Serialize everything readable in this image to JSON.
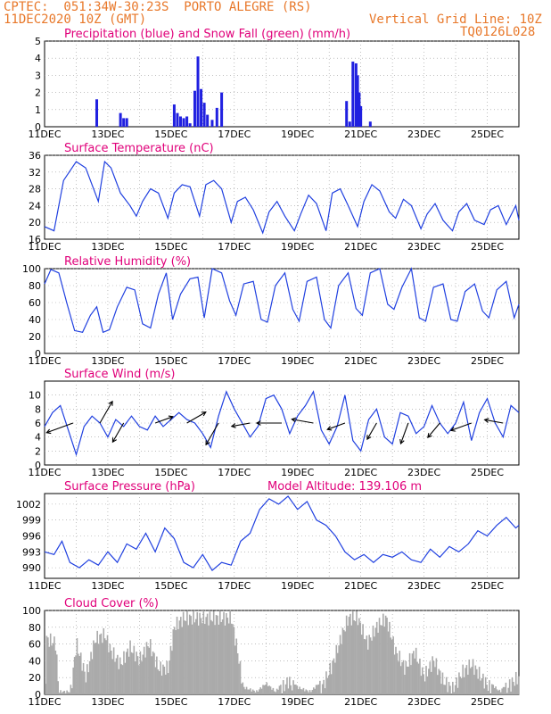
{
  "header": {
    "line1": "CPTEC:  051:34W-30:23S  PORTO ALEGRE (RS)",
    "line2": "11DEC2020 10Z (GMT)",
    "right1": "Vertical Grid Line: 10Z",
    "right2": "TQ0126L028"
  },
  "colors": {
    "header": "#e8782a",
    "title": "#e0007a",
    "line": "#2040e0",
    "precip": "#2020e0",
    "snow": "#00a000",
    "cloud": "#aaaaaa",
    "grid": "#999999"
  },
  "chart_data": [
    {
      "id": "precip",
      "type": "bar",
      "title": "Precipitation (blue) and Snow Fall (green) (mm/h)",
      "ylim": [
        0,
        5
      ],
      "yticks": [
        0,
        1,
        2,
        3,
        4,
        5
      ],
      "xlabels": [
        "11DEC",
        "13DEC",
        "15DEC",
        "17DEC",
        "19DEC",
        "21DEC",
        "23DEC",
        "25DEC"
      ],
      "xlim_days": [
        0,
        15
      ],
      "grid": true,
      "series": [
        {
          "name": "Precipitation",
          "color": "#2020e0",
          "x_days": [
            1.65,
            2.4,
            2.5,
            2.6,
            4.1,
            4.2,
            4.3,
            4.4,
            4.5,
            4.6,
            4.75,
            4.85,
            4.95,
            5.05,
            5.15,
            5.3,
            5.45,
            5.6,
            9.55,
            9.65,
            9.75,
            9.85,
            9.9,
            9.95,
            10.0,
            10.3
          ],
          "values": [
            1.6,
            0.8,
            0.5,
            0.5,
            1.3,
            0.8,
            0.6,
            0.5,
            0.6,
            0.2,
            2.1,
            4.1,
            2.2,
            1.4,
            0.7,
            0.4,
            1.1,
            2.0,
            1.5,
            0.3,
            3.8,
            3.7,
            3.0,
            2.0,
            1.2,
            0.3
          ]
        },
        {
          "name": "Snow Fall",
          "color": "#00a000",
          "x_days": [],
          "values": []
        }
      ]
    },
    {
      "id": "temp",
      "type": "line",
      "title": "Surface Temperature (nC)",
      "ylim": [
        16,
        36
      ],
      "yticks": [
        16,
        20,
        24,
        28,
        32,
        36
      ],
      "xlabels": [
        "11DEC",
        "13DEC",
        "15DEC",
        "17DEC",
        "19DEC",
        "21DEC",
        "23DEC",
        "25DEC"
      ],
      "xlim_days": [
        0,
        15
      ],
      "grid": true,
      "series": [
        {
          "name": "Temperature",
          "x_days": [
            0,
            0.3,
            0.6,
            1.0,
            1.3,
            1.5,
            1.7,
            1.9,
            2.1,
            2.4,
            2.7,
            2.9,
            3.1,
            3.35,
            3.6,
            3.9,
            4.1,
            4.35,
            4.6,
            4.9,
            5.1,
            5.35,
            5.6,
            5.9,
            6.1,
            6.35,
            6.6,
            6.9,
            7.1,
            7.35,
            7.6,
            7.9,
            8.1,
            8.35,
            8.6,
            8.9,
            9.1,
            9.35,
            9.6,
            9.9,
            10.1,
            10.35,
            10.6,
            10.9,
            11.1,
            11.35,
            11.6,
            11.9,
            12.1,
            12.35,
            12.6,
            12.9,
            13.1,
            13.35,
            13.6,
            13.9,
            14.1,
            14.35,
            14.6,
            14.9,
            15.0
          ],
          "values": [
            19,
            18,
            30,
            34.5,
            33,
            29,
            25,
            34.5,
            33,
            27,
            24,
            21.5,
            25,
            28,
            27,
            21,
            27,
            29,
            28.5,
            21.5,
            29,
            30,
            28,
            20,
            25,
            26,
            23,
            17.5,
            22.5,
            25,
            21.5,
            18,
            22,
            26.5,
            24.5,
            18,
            27,
            28,
            24,
            19,
            25,
            29,
            27.5,
            22.5,
            21,
            25.5,
            24,
            18.5,
            22,
            24.5,
            20.5,
            18,
            22.5,
            24.5,
            20.5,
            19.5,
            23,
            24,
            19.5,
            24,
            20.5
          ]
        }
      ]
    },
    {
      "id": "rh",
      "type": "line",
      "title": "Relative Humidity (%)",
      "ylim": [
        0,
        100
      ],
      "yticks": [
        0,
        20,
        40,
        60,
        80,
        100
      ],
      "xlabels": [
        "11DEC",
        "13DEC",
        "15DEC",
        "17DEC",
        "19DEC",
        "21DEC",
        "23DEC",
        "25DEC"
      ],
      "xlim_days": [
        0,
        15
      ],
      "grid": true,
      "series": [
        {
          "name": "Humidity",
          "x_days": [
            0,
            0.2,
            0.45,
            0.7,
            0.95,
            1.2,
            1.45,
            1.65,
            1.85,
            2.05,
            2.3,
            2.6,
            2.85,
            3.1,
            3.35,
            3.6,
            3.85,
            4.05,
            4.3,
            4.6,
            4.85,
            5.05,
            5.3,
            5.6,
            5.85,
            6.05,
            6.3,
            6.6,
            6.85,
            7.05,
            7.3,
            7.6,
            7.85,
            8.05,
            8.3,
            8.6,
            8.85,
            9.05,
            9.3,
            9.6,
            9.85,
            10.05,
            10.3,
            10.6,
            10.85,
            11.05,
            11.3,
            11.6,
            11.85,
            12.05,
            12.3,
            12.6,
            12.85,
            13.05,
            13.3,
            13.6,
            13.85,
            14.05,
            14.3,
            14.6,
            14.85,
            15.0
          ],
          "values": [
            82,
            99,
            95,
            60,
            27,
            25,
            45,
            55,
            25,
            28,
            55,
            78,
            75,
            35,
            30,
            70,
            95,
            40,
            70,
            88,
            90,
            42,
            100,
            95,
            62,
            45,
            82,
            85,
            40,
            37,
            80,
            95,
            52,
            38,
            85,
            90,
            40,
            30,
            80,
            95,
            53,
            45,
            95,
            100,
            58,
            52,
            78,
            100,
            42,
            38,
            78,
            82,
            40,
            38,
            73,
            82,
            50,
            42,
            75,
            85,
            42,
            58
          ]
        }
      ]
    },
    {
      "id": "wind",
      "type": "line",
      "title": "Surface Wind (m/s)",
      "ylim": [
        0,
        12
      ],
      "yticks": [
        0,
        2,
        4,
        6,
        8,
        10
      ],
      "xlabels": [
        "11DEC",
        "13DEC",
        "15DEC",
        "17DEC",
        "19DEC",
        "21DEC",
        "23DEC",
        "25DEC"
      ],
      "xlim_days": [
        0,
        15
      ],
      "grid": true,
      "series": [
        {
          "name": "Wind speed",
          "x_days": [
            0,
            0.25,
            0.5,
            0.75,
            1.0,
            1.25,
            1.5,
            1.75,
            2.0,
            2.25,
            2.5,
            2.75,
            3.0,
            3.25,
            3.5,
            3.75,
            4.0,
            4.25,
            4.5,
            4.75,
            5.0,
            5.25,
            5.5,
            5.75,
            6.0,
            6.25,
            6.5,
            6.75,
            7.0,
            7.25,
            7.5,
            7.75,
            8.0,
            8.25,
            8.5,
            8.75,
            9.0,
            9.25,
            9.5,
            9.75,
            10.0,
            10.25,
            10.5,
            10.75,
            11.0,
            11.25,
            11.5,
            11.75,
            12.0,
            12.25,
            12.5,
            12.75,
            13.0,
            13.25,
            13.5,
            13.75,
            14.0,
            14.25,
            14.5,
            14.75,
            15.0
          ],
          "values": [
            5.5,
            7.5,
            8.5,
            5,
            1.5,
            5.5,
            7,
            6,
            4,
            6.5,
            5.5,
            7,
            5.5,
            5,
            7,
            5.5,
            6.5,
            7.5,
            6.5,
            6,
            4.5,
            2.5,
            7,
            10.5,
            8,
            6,
            4,
            5.5,
            9.5,
            10,
            8,
            4.5,
            7,
            8.5,
            10.5,
            5,
            3,
            5.5,
            10,
            3.5,
            2,
            6.5,
            8,
            4,
            3,
            7.5,
            7,
            4.5,
            5.5,
            8.5,
            6,
            4.5,
            6,
            9,
            3.5,
            7.5,
            9.5,
            6,
            4,
            8.5,
            7.5
          ]
        }
      ],
      "arrows": [
        {
          "x_days": 0.9,
          "dir_deg": 200,
          "len": 4.5
        },
        {
          "x_days": 1.75,
          "dir_deg": 60,
          "len": 4
        },
        {
          "x_days": 2.5,
          "dir_deg": 240,
          "len": 3.5
        },
        {
          "x_days": 3.5,
          "dir_deg": 20,
          "len": 3
        },
        {
          "x_days": 4.5,
          "dir_deg": 30,
          "len": 3.5
        },
        {
          "x_days": 5.5,
          "dir_deg": 240,
          "len": 4
        },
        {
          "x_days": 6.5,
          "dir_deg": 190,
          "len": 3
        },
        {
          "x_days": 7.5,
          "dir_deg": 180,
          "len": 4
        },
        {
          "x_days": 8.5,
          "dir_deg": 170,
          "len": 3.5
        },
        {
          "x_days": 9.5,
          "dir_deg": 200,
          "len": 3
        },
        {
          "x_days": 10.5,
          "dir_deg": 240,
          "len": 3
        },
        {
          "x_days": 11.5,
          "dir_deg": 250,
          "len": 3.5
        },
        {
          "x_days": 12.5,
          "dir_deg": 230,
          "len": 3
        },
        {
          "x_days": 13.5,
          "dir_deg": 200,
          "len": 3.5
        },
        {
          "x_days": 14.5,
          "dir_deg": 170,
          "len": 3
        }
      ]
    },
    {
      "id": "pres",
      "type": "line",
      "title": "Surface Pressure (hPa)",
      "note": "Model Altitude: 139.106  m",
      "ylim": [
        988,
        1004
      ],
      "yticks": [
        990,
        993,
        996,
        999,
        1002
      ],
      "xlabels": [
        "11DEC",
        "13DEC",
        "15DEC",
        "17DEC",
        "19DEC",
        "21DEC",
        "23DEC",
        "25DEC"
      ],
      "xlim_days": [
        0,
        15
      ],
      "grid": true,
      "series": [
        {
          "name": "Pressure",
          "x_days": [
            0,
            0.3,
            0.55,
            0.8,
            1.1,
            1.4,
            1.7,
            2.0,
            2.3,
            2.6,
            2.9,
            3.2,
            3.5,
            3.8,
            4.1,
            4.4,
            4.7,
            5.0,
            5.3,
            5.6,
            5.9,
            6.2,
            6.5,
            6.8,
            7.1,
            7.4,
            7.7,
            8.0,
            8.3,
            8.6,
            8.9,
            9.2,
            9.5,
            9.8,
            10.1,
            10.4,
            10.7,
            11.0,
            11.3,
            11.6,
            11.9,
            12.2,
            12.5,
            12.8,
            13.1,
            13.4,
            13.7,
            14.0,
            14.3,
            14.6,
            14.9,
            15.0
          ],
          "values": [
            993,
            992.5,
            995,
            991,
            990,
            991.5,
            990.5,
            993,
            991,
            994.5,
            993.5,
            996.5,
            993,
            997.5,
            995.5,
            991,
            990,
            992.5,
            989.5,
            991,
            990.5,
            995,
            996.5,
            1001,
            1003,
            1002,
            1003.5,
            1001,
            1002.5,
            999,
            998,
            996,
            993,
            991.5,
            992.5,
            991,
            992.5,
            992,
            993,
            991.5,
            991,
            993.5,
            992,
            994,
            993,
            994.5,
            997,
            996,
            998,
            999.5,
            997.5,
            998
          ]
        }
      ]
    },
    {
      "id": "cloud",
      "type": "bar",
      "title": "Cloud Cover (%)",
      "ylim": [
        0,
        100
      ],
      "yticks": [
        0,
        20,
        40,
        60,
        80,
        100
      ],
      "xlabels": [
        "11DEC",
        "13DEC",
        "15DEC",
        "17DEC",
        "19DEC",
        "21DEC",
        "23DEC",
        "25DEC"
      ],
      "xlim_days": [
        0,
        15
      ],
      "grid": true,
      "profile": [
        {
          "x_days": 0.0,
          "value": 0
        },
        {
          "x_days": 0.05,
          "value": 75
        },
        {
          "x_days": 0.35,
          "value": 70
        },
        {
          "x_days": 0.45,
          "value": 5
        },
        {
          "x_days": 0.8,
          "value": 5
        },
        {
          "x_days": 1.0,
          "value": 70
        },
        {
          "x_days": 1.3,
          "value": 30
        },
        {
          "x_days": 1.6,
          "value": 75
        },
        {
          "x_days": 1.9,
          "value": 80
        },
        {
          "x_days": 2.1,
          "value": 60
        },
        {
          "x_days": 2.4,
          "value": 45
        },
        {
          "x_days": 2.7,
          "value": 65
        },
        {
          "x_days": 3.0,
          "value": 50
        },
        {
          "x_days": 3.3,
          "value": 70
        },
        {
          "x_days": 3.6,
          "value": 40
        },
        {
          "x_days": 3.9,
          "value": 40
        },
        {
          "x_days": 4.1,
          "value": 90
        },
        {
          "x_days": 4.4,
          "value": 100
        },
        {
          "x_days": 4.7,
          "value": 100
        },
        {
          "x_days": 5.0,
          "value": 100
        },
        {
          "x_days": 5.3,
          "value": 100
        },
        {
          "x_days": 5.6,
          "value": 100
        },
        {
          "x_days": 5.9,
          "value": 100
        },
        {
          "x_days": 6.1,
          "value": 60
        },
        {
          "x_days": 6.3,
          "value": 10
        },
        {
          "x_days": 6.7,
          "value": 5
        },
        {
          "x_days": 7.0,
          "value": 15
        },
        {
          "x_days": 7.3,
          "value": 5
        },
        {
          "x_days": 7.7,
          "value": 25
        },
        {
          "x_days": 8.0,
          "value": 10
        },
        {
          "x_days": 8.4,
          "value": 5
        },
        {
          "x_days": 8.8,
          "value": 20
        },
        {
          "x_days": 9.1,
          "value": 45
        },
        {
          "x_days": 9.4,
          "value": 80
        },
        {
          "x_days": 9.6,
          "value": 100
        },
        {
          "x_days": 9.9,
          "value": 100
        },
        {
          "x_days": 10.2,
          "value": 70
        },
        {
          "x_days": 10.5,
          "value": 90
        },
        {
          "x_days": 10.8,
          "value": 100
        },
        {
          "x_days": 11.1,
          "value": 60
        },
        {
          "x_days": 11.4,
          "value": 40
        },
        {
          "x_days": 11.7,
          "value": 60
        },
        {
          "x_days": 12.0,
          "value": 30
        },
        {
          "x_days": 12.3,
          "value": 50
        },
        {
          "x_days": 12.6,
          "value": 25
        },
        {
          "x_days": 12.9,
          "value": 15
        },
        {
          "x_days": 13.2,
          "value": 35
        },
        {
          "x_days": 13.5,
          "value": 45
        },
        {
          "x_days": 13.8,
          "value": 30
        },
        {
          "x_days": 14.1,
          "value": 15
        },
        {
          "x_days": 14.4,
          "value": 5
        },
        {
          "x_days": 14.7,
          "value": 20
        },
        {
          "x_days": 15.0,
          "value": 30
        }
      ]
    }
  ]
}
